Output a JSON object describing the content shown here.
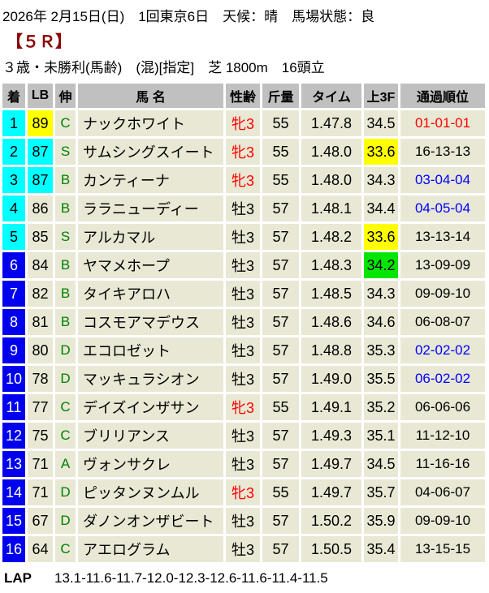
{
  "header": {
    "date_line": "2026年 2月15日(日)　1回東京6日　天候：晴　馬場状態：良",
    "race_number": "【５Ｒ】",
    "race_conditions": "３歳・未勝利(馬齢)　(混)[指定]　芝 1800m　16頭立"
  },
  "colors": {
    "race_number_red": "#8b0000",
    "header_bg": "#c0c0c0",
    "row_bg": "#e8e8d4",
    "highlight_cyan": "#00ffff",
    "highlight_yellow": "#ffff00",
    "highlight_green": "#00e600",
    "rank_blue": "#0000ee",
    "text_red": "#ff0000",
    "text_blue": "#0000ff",
    "text_green": "#008000"
  },
  "table": {
    "columns": [
      "着",
      "LB",
      "伸",
      "馬 名",
      "性齢",
      "斤量",
      "タイム",
      "上3F",
      "通過順位"
    ],
    "rows": [
      {
        "rank": "1",
        "rank_bg": "cyan",
        "lb": "89",
        "lb_bg": "yellow",
        "nobi": "C",
        "name": "ナックホワイト",
        "sex": "牝3",
        "sex_red": true,
        "weight": "55",
        "time": "1.47.8",
        "f3": "34.5",
        "f3_bg": "",
        "pass": "01-01-01",
        "pass_color": "red"
      },
      {
        "rank": "2",
        "rank_bg": "cyan",
        "lb": "87",
        "lb_bg": "cyan",
        "nobi": "S",
        "name": "サムシングスイート",
        "sex": "牝3",
        "sex_red": true,
        "weight": "55",
        "time": "1.48.0",
        "f3": "33.6",
        "f3_bg": "yellow",
        "pass": "16-13-13",
        "pass_color": ""
      },
      {
        "rank": "3",
        "rank_bg": "cyan",
        "lb": "87",
        "lb_bg": "cyan",
        "nobi": "B",
        "name": "カンティーナ",
        "sex": "牝3",
        "sex_red": true,
        "weight": "55",
        "time": "1.48.0",
        "f3": "34.3",
        "f3_bg": "",
        "pass": "03-04-04",
        "pass_color": "blue"
      },
      {
        "rank": "4",
        "rank_bg": "cyan",
        "lb": "86",
        "lb_bg": "",
        "nobi": "B",
        "name": "ララニューディー",
        "sex": "牡3",
        "sex_red": false,
        "weight": "57",
        "time": "1.48.1",
        "f3": "34.4",
        "f3_bg": "",
        "pass": "04-05-04",
        "pass_color": "blue"
      },
      {
        "rank": "5",
        "rank_bg": "cyan",
        "lb": "85",
        "lb_bg": "",
        "nobi": "S",
        "name": "アルカマル",
        "sex": "牡3",
        "sex_red": false,
        "weight": "57",
        "time": "1.48.2",
        "f3": "33.6",
        "f3_bg": "yellow",
        "pass": "13-13-14",
        "pass_color": ""
      },
      {
        "rank": "6",
        "rank_bg": "blue",
        "lb": "84",
        "lb_bg": "",
        "nobi": "B",
        "name": "ヤマメホープ",
        "sex": "牡3",
        "sex_red": false,
        "weight": "57",
        "time": "1.48.3",
        "f3": "34.2",
        "f3_bg": "green",
        "pass": "13-09-09",
        "pass_color": ""
      },
      {
        "rank": "7",
        "rank_bg": "blue",
        "lb": "82",
        "lb_bg": "",
        "nobi": "B",
        "name": "タイキアロハ",
        "sex": "牡3",
        "sex_red": false,
        "weight": "57",
        "time": "1.48.5",
        "f3": "34.3",
        "f3_bg": "",
        "pass": "09-09-10",
        "pass_color": ""
      },
      {
        "rank": "8",
        "rank_bg": "blue",
        "lb": "81",
        "lb_bg": "",
        "nobi": "B",
        "name": "コスモアマデウス",
        "sex": "牡3",
        "sex_red": false,
        "weight": "57",
        "time": "1.48.6",
        "f3": "34.6",
        "f3_bg": "",
        "pass": "06-08-07",
        "pass_color": ""
      },
      {
        "rank": "9",
        "rank_bg": "blue",
        "lb": "80",
        "lb_bg": "",
        "nobi": "D",
        "name": "エコロゼット",
        "sex": "牡3",
        "sex_red": false,
        "weight": "57",
        "time": "1.48.8",
        "f3": "35.3",
        "f3_bg": "",
        "pass": "02-02-02",
        "pass_color": "blue"
      },
      {
        "rank": "10",
        "rank_bg": "blue",
        "lb": "78",
        "lb_bg": "",
        "nobi": "D",
        "name": "マッキュラシオン",
        "sex": "牡3",
        "sex_red": false,
        "weight": "57",
        "time": "1.49.0",
        "f3": "35.5",
        "f3_bg": "",
        "pass": "06-02-02",
        "pass_color": "blue"
      },
      {
        "rank": "11",
        "rank_bg": "blue",
        "lb": "77",
        "lb_bg": "",
        "nobi": "C",
        "name": "デイズインザサン",
        "sex": "牝3",
        "sex_red": true,
        "weight": "55",
        "time": "1.49.1",
        "f3": "35.2",
        "f3_bg": "",
        "pass": "06-06-06",
        "pass_color": ""
      },
      {
        "rank": "12",
        "rank_bg": "blue",
        "lb": "75",
        "lb_bg": "",
        "nobi": "C",
        "name": "ブリリアンス",
        "sex": "牡3",
        "sex_red": false,
        "weight": "57",
        "time": "1.49.3",
        "f3": "35.1",
        "f3_bg": "",
        "pass": "11-12-10",
        "pass_color": ""
      },
      {
        "rank": "13",
        "rank_bg": "blue",
        "lb": "71",
        "lb_bg": "",
        "nobi": "A",
        "name": "ヴォンサクレ",
        "sex": "牡3",
        "sex_red": false,
        "weight": "57",
        "time": "1.49.7",
        "f3": "34.5",
        "f3_bg": "",
        "pass": "11-16-16",
        "pass_color": ""
      },
      {
        "rank": "14",
        "rank_bg": "blue",
        "lb": "71",
        "lb_bg": "",
        "nobi": "D",
        "name": "ピッタンヌンムル",
        "sex": "牝3",
        "sex_red": true,
        "weight": "55",
        "time": "1.49.7",
        "f3": "35.7",
        "f3_bg": "",
        "pass": "04-06-07",
        "pass_color": ""
      },
      {
        "rank": "15",
        "rank_bg": "blue",
        "lb": "67",
        "lb_bg": "",
        "nobi": "D",
        "name": "ダノンオンザビート",
        "sex": "牡3",
        "sex_red": false,
        "weight": "57",
        "time": "1.50.2",
        "f3": "35.9",
        "f3_bg": "",
        "pass": "09-09-10",
        "pass_color": ""
      },
      {
        "rank": "16",
        "rank_bg": "blue",
        "lb": "64",
        "lb_bg": "",
        "nobi": "C",
        "name": "アエログラム",
        "sex": "牡3",
        "sex_red": false,
        "weight": "57",
        "time": "1.50.5",
        "f3": "35.4",
        "f3_bg": "",
        "pass": "13-15-15",
        "pass_color": ""
      }
    ]
  },
  "lap": {
    "label": "LAP",
    "values": "13.1-11.6-11.7-12.0-12.3-12.6-11.6-11.4-11.5"
  }
}
